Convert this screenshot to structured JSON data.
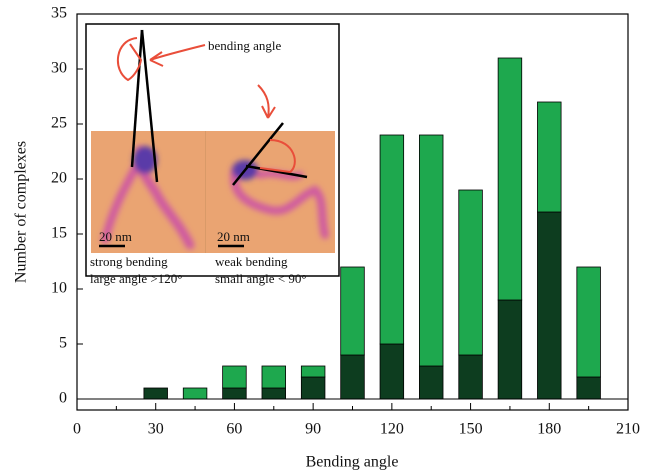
{
  "chart_data": {
    "type": "bar",
    "stacked": true,
    "x_label": "Bending angle",
    "y_label": "Number of complexes",
    "x": [
      30,
      45,
      60,
      75,
      90,
      105,
      120,
      135,
      150,
      165,
      180,
      195
    ],
    "bar_width": 9,
    "series": [
      {
        "color": "#0d3d1f",
        "values": [
          1,
          0,
          1,
          1,
          2,
          4,
          5,
          3,
          4,
          9,
          17,
          2
        ]
      },
      {
        "color": "#1ea84e",
        "values": [
          0,
          1,
          2,
          2,
          1,
          8,
          19,
          21,
          15,
          22,
          10,
          10
        ]
      }
    ],
    "xlim": [
      0,
      210
    ],
    "xticks": [
      0,
      30,
      60,
      90,
      120,
      150,
      180,
      210
    ],
    "xminorticks": [
      15,
      45,
      75,
      105,
      135,
      165,
      195
    ],
    "ylim": [
      -1,
      35
    ],
    "yticks": [
      0,
      5,
      10,
      15,
      20,
      25,
      30,
      35
    ],
    "annotations": [
      "bending angle",
      "strong bending",
      "large angle >120°",
      "weak bending",
      "small angle < 90°",
      "20 nm",
      "20 nm"
    ]
  }
}
